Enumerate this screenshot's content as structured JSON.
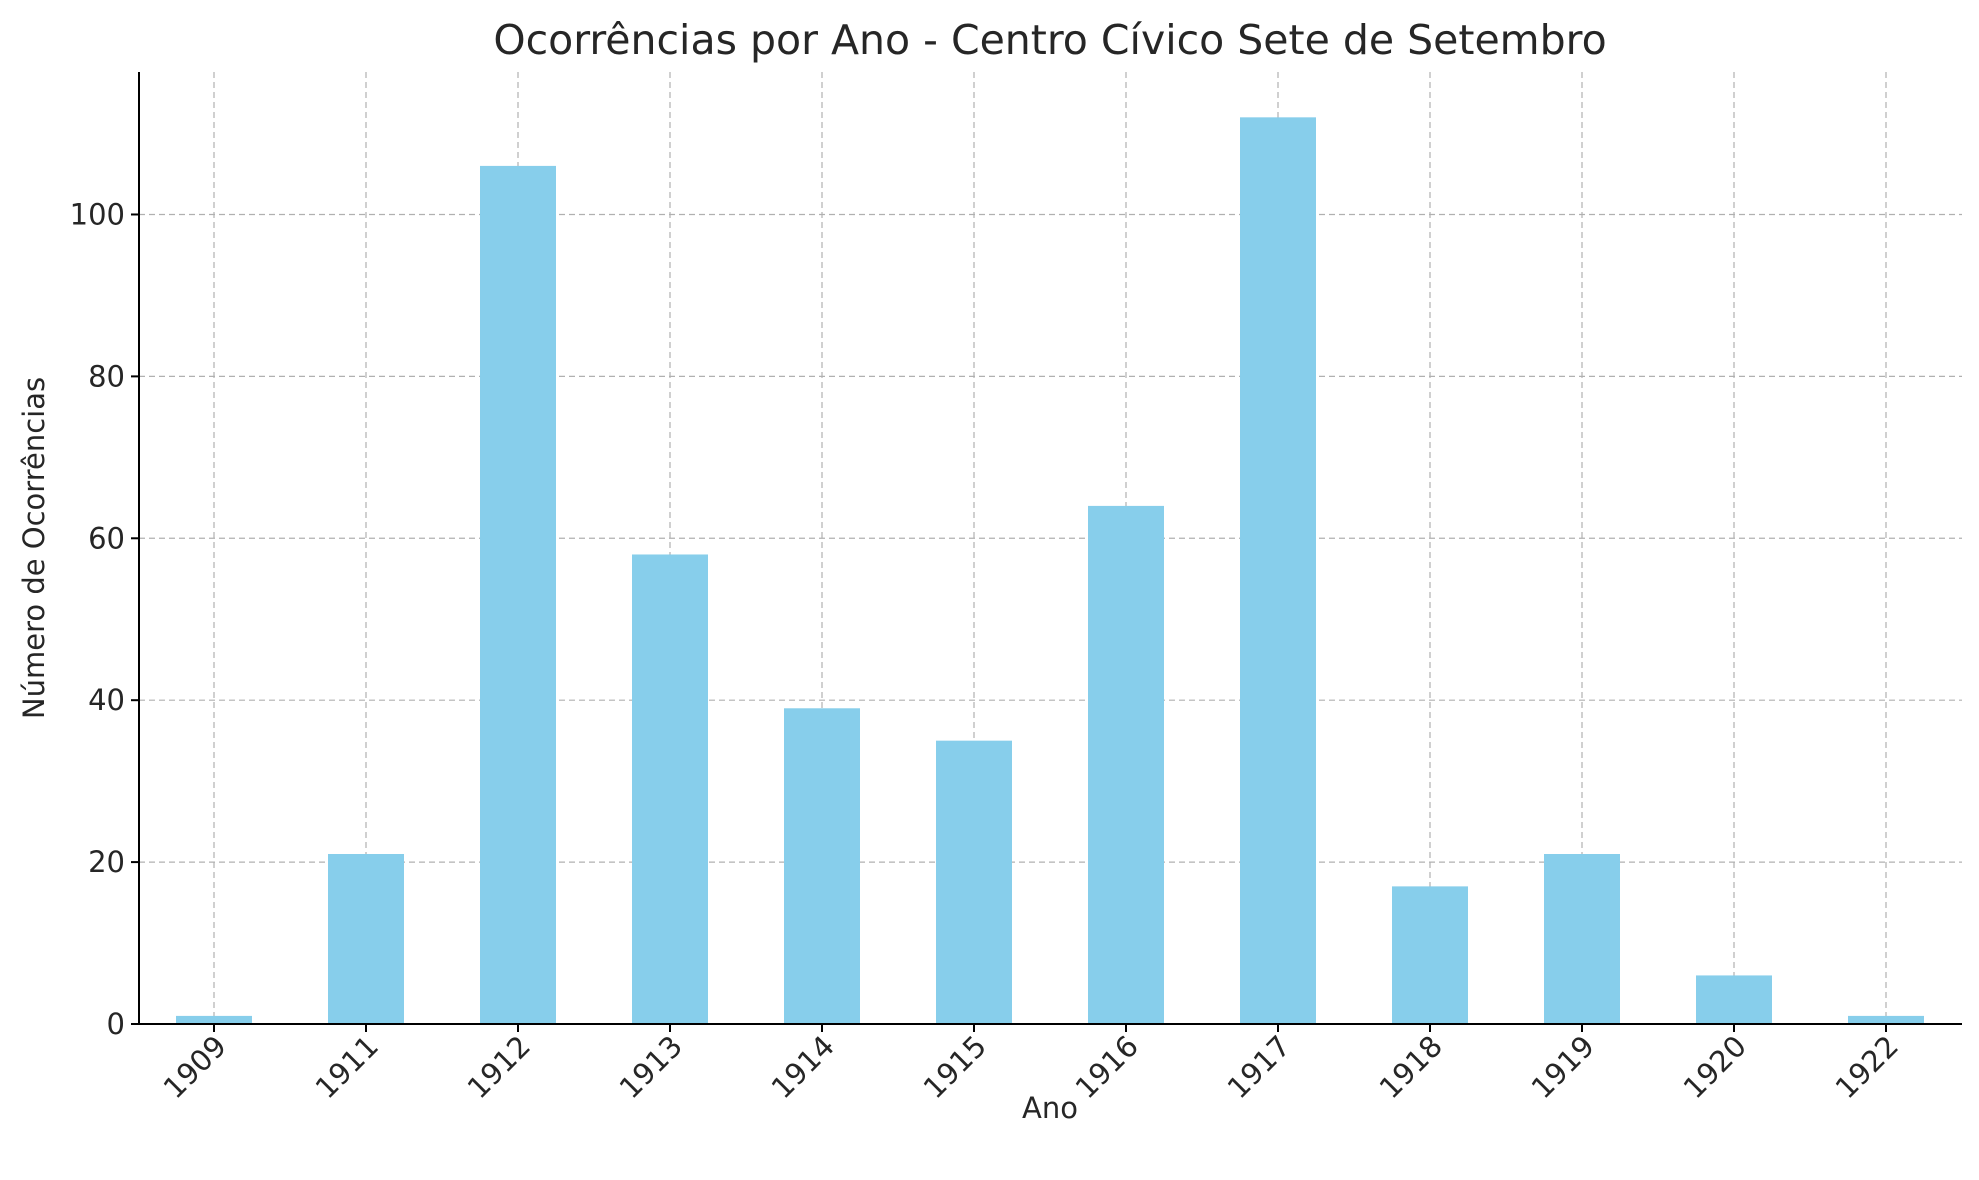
{
  "chart_data": {
    "type": "bar",
    "title": "Ocorrências por Ano - Centro Cívico Sete de Setembro",
    "xlabel": "Ano",
    "ylabel": "Número de Ocorrências",
    "categories": [
      "1909",
      "1911",
      "1912",
      "1913",
      "1914",
      "1915",
      "1916",
      "1917",
      "1918",
      "1919",
      "1920",
      "1922"
    ],
    "values": [
      1,
      21,
      106,
      58,
      39,
      35,
      64,
      112,
      17,
      21,
      6,
      1
    ],
    "ylim": [
      0,
      117.6
    ],
    "yticks": [
      0,
      20,
      40,
      60,
      80,
      100
    ],
    "bar_color": "#87CEEB",
    "grid": true,
    "xtick_rotation": "45 degrees"
  }
}
